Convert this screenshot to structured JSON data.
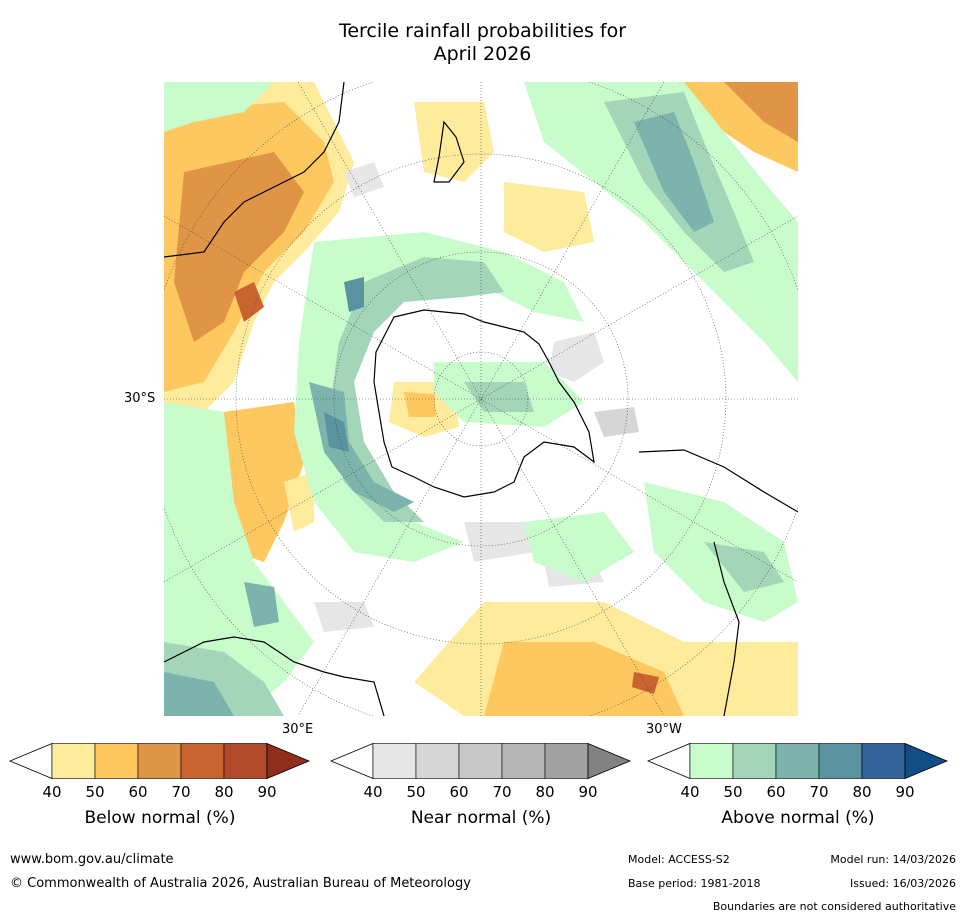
{
  "title": {
    "line1": "Tercile rainfall probabilities for",
    "line2": "April 2026"
  },
  "map": {
    "labels": {
      "lat_30s": "30°S",
      "lon_30e": "30°E",
      "lon_30w": "30°W"
    }
  },
  "colorbars": [
    {
      "title": "Below normal (%)",
      "ticks": [
        "40",
        "50",
        "60",
        "70",
        "80",
        "90"
      ],
      "colors": [
        "#ffeb9c",
        "#fdc860",
        "#e09445",
        "#c96330",
        "#b04a28",
        "#8f2e1a"
      ]
    },
    {
      "title": "Near normal (%)",
      "ticks": [
        "40",
        "50",
        "60",
        "70",
        "80",
        "90"
      ],
      "colors": [
        "#e6e6e6",
        "#d6d6d6",
        "#c8c8c8",
        "#b6b6b6",
        "#a2a2a2",
        "#828282"
      ]
    },
    {
      "title": "Above normal (%)",
      "ticks": [
        "40",
        "50",
        "60",
        "70",
        "80",
        "90"
      ],
      "colors": [
        "#c9fccb",
        "#a3d6b9",
        "#7cb4ad",
        "#5a93a0",
        "#33659a",
        "#134d86"
      ]
    }
  ],
  "footer": {
    "url": "www.bom.gov.au/climate",
    "copyright": "© Commonwealth of Australia 2026, Australian Bureau of Meteorology",
    "model": "Model: ACCESS-S2",
    "model_run": "Model run: 14/03/2026",
    "base_period": "Base period: 1981-2018",
    "issued": "Issued: 16/03/2026",
    "disclaimer": "Boundaries are not considered authoritative"
  }
}
